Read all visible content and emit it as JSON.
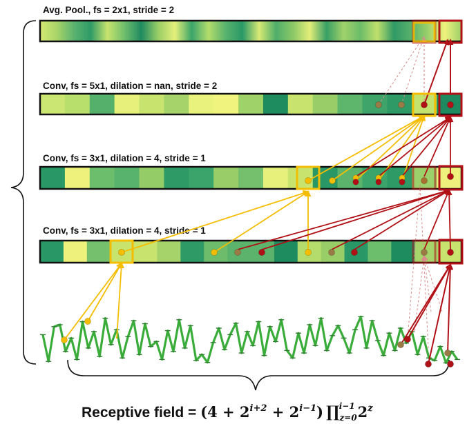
{
  "layers": [
    {
      "key": "pool",
      "title": "Avg. Pool., fs = 2x1, stride = 2"
    },
    {
      "key": "conv3",
      "title": "Conv, fs = 5x1, dilation = nan, stride = 2"
    },
    {
      "key": "conv2",
      "title": "Conv, fs = 3x1, dilation = 4, stride = 1"
    },
    {
      "key": "conv1",
      "title": "Conv, fs = 3x1, dilation = 4, stride = 1"
    }
  ],
  "formula": {
    "label": "Receptive field = ",
    "open": "(4 + 2",
    "exp1": "i+2",
    "plus": " + 2",
    "exp2": "i−1",
    "close": ")",
    "product": "∏",
    "sub": "z=0",
    "sup": "i−1",
    "base": "2",
    "exp3": "z"
  },
  "colors": {
    "yellow": "#f5bd00",
    "red": "#b01016",
    "faded_red": "#d98a8a",
    "signal": "#3aac3a",
    "bar_border": "#111111"
  },
  "cell_shades": {
    "pool": [
      "#d6ea72",
      "#a8d468",
      "#5bb370",
      "#2e9a66",
      "#c8e46e",
      "#6fbf6c",
      "#1f8a60",
      "#98cd66",
      "#e6f07a",
      "#3aa46a",
      "#b4dc6c",
      "#58b36c",
      "#2a9866",
      "#d8ea74",
      "#4fae6a",
      "#8cc868",
      "#e2ee78",
      "#389f66",
      "#a0d26a",
      "#6cbc6a",
      "#c0e06c",
      "#2f9966",
      "#58b16a",
      "#9bd06a",
      "#eef27c",
      "#9fd06a"
    ],
    "conv3": [
      "#cbe673",
      "#b8de6c",
      "#55b06c",
      "#e6f07a",
      "#c8e46e",
      "#a6d46a",
      "#e8f27c",
      "#f0f47e",
      "#a0d26a",
      "#1f8c60",
      "#c8e46e",
      "#98cd68",
      "#5eb56c",
      "#3fa46a",
      "#2e9a66",
      "#c4e26e",
      "#1e8a60"
    ],
    "conv2": [
      "#2a9866",
      "#eef27c",
      "#6cbd6c",
      "#58b36c",
      "#94cc68",
      "#2e9a66",
      "#3aa46a",
      "#98cd68",
      "#74c06c",
      "#e6f07a",
      "#c8e46e",
      "#2a9866",
      "#5cb46c",
      "#3aa46a",
      "#2e9a66",
      "#9bd06a",
      "#eef27c"
    ],
    "conv1": [
      "#2a9866",
      "#eef27c",
      "#74c06c",
      "#c8e46e",
      "#c8e46e",
      "#a6d46a",
      "#2e9a66",
      "#6cbc6c",
      "#5cb46c",
      "#5cb46c",
      "#1f8c60",
      "#b4dc6c",
      "#98cd68",
      "#2a9866",
      "#6cbd6c",
      "#1f8c60",
      "#a6d46a",
      "#c8e46e"
    ]
  },
  "signal_values": [
    0.62,
    0.08,
    0.78,
    0.82,
    0.28,
    0.55,
    0.12,
    0.88,
    0.35,
    0.68,
    0.18,
    0.95,
    0.42,
    0.72,
    0.15,
    0.58,
    0.9,
    0.22,
    0.84,
    0.38,
    0.48,
    0.12,
    0.7,
    0.28,
    0.92,
    0.35,
    0.8,
    0.1,
    0.22,
    0.06,
    0.46,
    0.75,
    0.32,
    0.62,
    0.85,
    0.25,
    0.68,
    0.4,
    0.88,
    0.2,
    0.78,
    0.48,
    0.92,
    0.3,
    0.15,
    0.65,
    0.25,
    0.82,
    0.4,
    0.95,
    0.3,
    0.6,
    0.8,
    0.55,
    0.25,
    0.72,
    0.98,
    0.35,
    0.9,
    0.5,
    0.2,
    0.65,
    0.3,
    0.75,
    0.45,
    0.68,
    0.22,
    0.58,
    0.15,
    0.1,
    0.38,
    0.05,
    0.28,
    0.12
  ]
}
